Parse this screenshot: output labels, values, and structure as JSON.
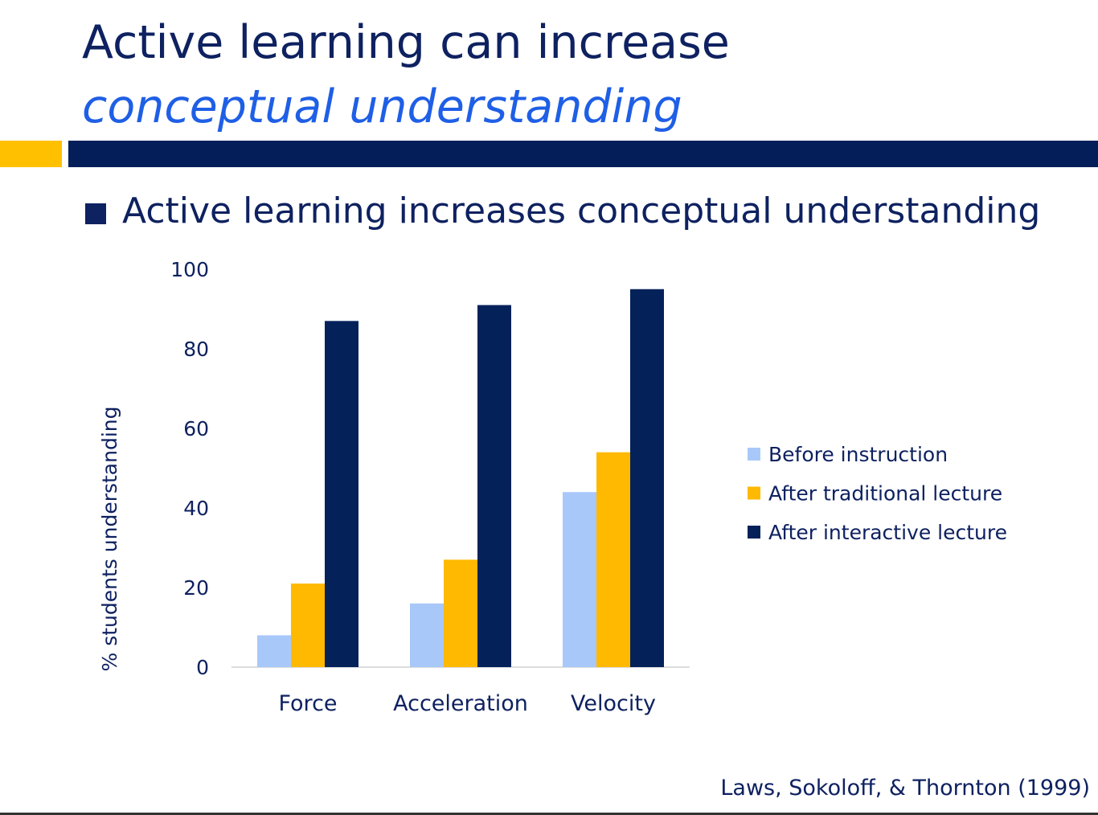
{
  "slide": {
    "title_line1": "Active learning can increase",
    "title_line2": "conceptual understanding",
    "bullet": "Active learning increases conceptual understanding",
    "citation": "Laws, Sokoloff, & Thornton (1999)"
  },
  "colors": {
    "navy": "#041e5a",
    "title": "#0e2160",
    "accent_blue": "#1f5fe6",
    "gold": "#ffc000"
  },
  "chart_data": {
    "type": "bar",
    "categories": [
      "Force",
      "Acceleration",
      "Velocity"
    ],
    "series": [
      {
        "name": "Before instruction",
        "color": "#a9c8fa",
        "values": [
          8,
          16,
          44
        ]
      },
      {
        "name": "After traditional lecture",
        "color": "#ffb900",
        "values": [
          21,
          27,
          54
        ]
      },
      {
        "name": "After interactive lecture",
        "color": "#04215a",
        "values": [
          87,
          91,
          95
        ]
      }
    ],
    "xlabel": "",
    "ylabel": "% students understanding",
    "ylim": [
      0,
      100
    ],
    "yticks": [
      0,
      20,
      40,
      60,
      80,
      100
    ],
    "grid": false,
    "legend_position": "right"
  }
}
